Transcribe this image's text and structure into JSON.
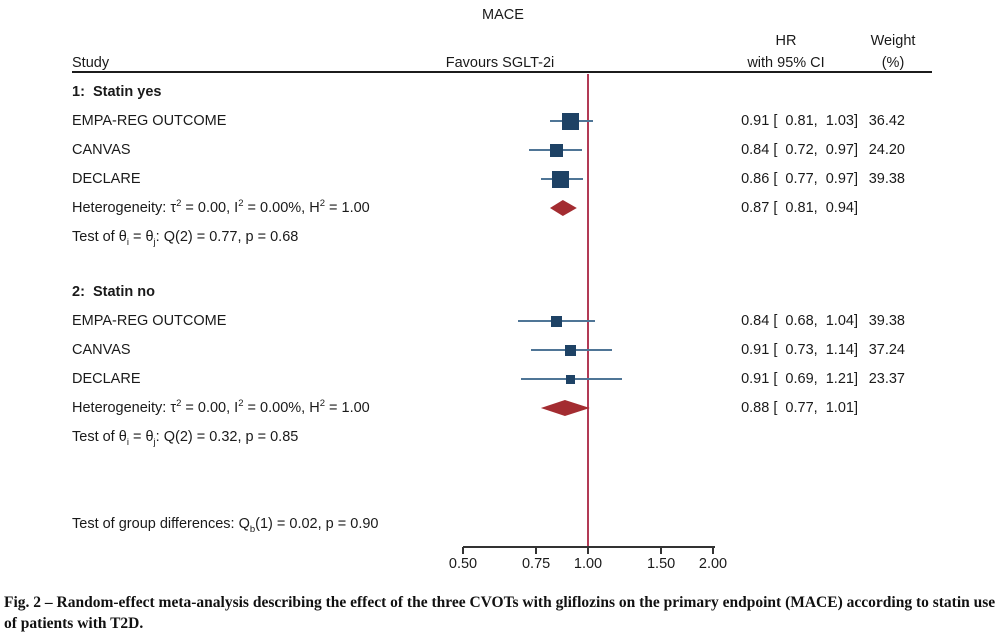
{
  "figure": {
    "caption": "Fig. 2 – Random-effect meta-analysis describing the effect of the three CVOTs with gliflozins on the primary endpoint (MACE) according to statin use of patients with T2D."
  },
  "columns": {
    "study": "Study",
    "favours": "Favours SGLT-2i",
    "hr_line1": "HR",
    "hr_line2": "with 95% CI",
    "weight_line1": "Weight",
    "weight_line2": "(%)"
  },
  "colors": {
    "square": "#1e4265",
    "ci_line": "#4f7596",
    "diamond": "#a32c31",
    "ref_line": "#b23a55",
    "rule": "#1c1c1c",
    "axis": "#333333",
    "text": "#1a1a1a"
  },
  "chart_data": {
    "type": "forest",
    "title": "MACE",
    "effect_measure": "HR",
    "axis": {
      "scale": "log",
      "min": 0.5,
      "max": 2.0,
      "ref_value": 1.0,
      "ticks": [
        {
          "v": 0.5,
          "label": "0.50"
        },
        {
          "v": 0.75,
          "label": "0.75"
        },
        {
          "v": 1.0,
          "label": "1.00"
        },
        {
          "v": 1.5,
          "label": "1.50"
        },
        {
          "v": 2.0,
          "label": "2.00"
        }
      ]
    },
    "groups": [
      {
        "heading": "1:  Statin yes",
        "studies": [
          {
            "label": "EMPA-REG OUTCOME",
            "hr": 0.91,
            "ci_low": 0.81,
            "ci_high": 1.03,
            "hr_text": "0.91 [  0.81,  1.03]",
            "weight": "36.42",
            "marker_size": 17
          },
          {
            "label": "CANVAS",
            "hr": 0.84,
            "ci_low": 0.72,
            "ci_high": 0.97,
            "hr_text": "0.84 [  0.72,  0.97]",
            "weight": "24.20",
            "marker_size": 13
          },
          {
            "label": "DECLARE",
            "hr": 0.86,
            "ci_low": 0.77,
            "ci_high": 0.97,
            "hr_text": "0.86 [  0.77,  0.97]",
            "weight": "39.38",
            "marker_size": 17
          }
        ],
        "summary": {
          "segments": [
            {
              "t": "Heterogeneity: τ"
            },
            {
              "t": "2",
              "sup": true
            },
            {
              "t": " = 0.00, I"
            },
            {
              "t": "2",
              "sup": true
            },
            {
              "t": " = 0.00%, H"
            },
            {
              "t": "2",
              "sup": true
            },
            {
              "t": " = 1.00"
            }
          ],
          "hr": 0.87,
          "ci_low": 0.81,
          "ci_high": 0.94,
          "hr_text": "0.87 [  0.81,  0.94]"
        },
        "test": {
          "segments": [
            {
              "t": "Test of θ"
            },
            {
              "t": "i",
              "sub": true
            },
            {
              "t": " = θ"
            },
            {
              "t": "j",
              "sub": true
            },
            {
              "t": ": Q(2) = 0.77, p = 0.68"
            }
          ]
        }
      },
      {
        "heading": "2:  Statin no",
        "studies": [
          {
            "label": "EMPA-REG OUTCOME",
            "hr": 0.84,
            "ci_low": 0.68,
            "ci_high": 1.04,
            "hr_text": "0.84 [  0.68,  1.04]",
            "weight": "39.38",
            "marker_size": 11
          },
          {
            "label": "CANVAS",
            "hr": 0.91,
            "ci_low": 0.73,
            "ci_high": 1.14,
            "hr_text": "0.91 [  0.73,  1.14]",
            "weight": "37.24",
            "marker_size": 11
          },
          {
            "label": "DECLARE",
            "hr": 0.91,
            "ci_low": 0.69,
            "ci_high": 1.21,
            "hr_text": "0.91 [  0.69,  1.21]",
            "weight": "23.37",
            "marker_size": 9
          }
        ],
        "summary": {
          "segments": [
            {
              "t": "Heterogeneity: τ"
            },
            {
              "t": "2",
              "sup": true
            },
            {
              "t": " = 0.00, I"
            },
            {
              "t": "2",
              "sup": true
            },
            {
              "t": " = 0.00%, H"
            },
            {
              "t": "2",
              "sup": true
            },
            {
              "t": " = 1.00"
            }
          ],
          "hr": 0.88,
          "ci_low": 0.77,
          "ci_high": 1.01,
          "hr_text": "0.88 [  0.77,  1.01]"
        },
        "test": {
          "segments": [
            {
              "t": "Test of θ"
            },
            {
              "t": "i",
              "sub": true
            },
            {
              "t": " = θ"
            },
            {
              "t": "j",
              "sub": true
            },
            {
              "t": ": Q(2) = 0.32, p = 0.85"
            }
          ]
        }
      }
    ],
    "group_difference": {
      "segments": [
        {
          "t": "Test of group differences: Q"
        },
        {
          "t": "b",
          "sub": true
        },
        {
          "t": "(1) = 0.02, p = 0.90"
        }
      ]
    }
  }
}
